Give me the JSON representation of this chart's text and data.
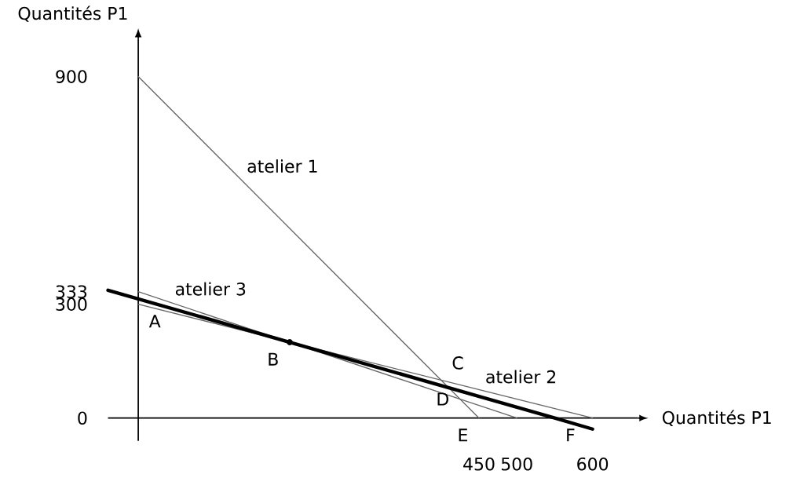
{
  "chart_data": {
    "type": "line",
    "xlabel": "Quantités P1",
    "ylabel": "Quantités P1",
    "xlim": [
      -40,
      660
    ],
    "ylim": [
      -60,
      1000
    ],
    "xticks": [
      450,
      500,
      600
    ],
    "yticks": [
      0,
      300,
      333,
      900
    ],
    "grid": false,
    "series": [
      {
        "name": "atelier 1",
        "color": "#666666",
        "x": [
          0,
          450
        ],
        "values": [
          900,
          0
        ]
      },
      {
        "name": "atelier 2",
        "color": "#666666",
        "x": [
          0,
          600
        ],
        "values": [
          300,
          0
        ]
      },
      {
        "name": "atelier 3",
        "color": "#666666",
        "x": [
          0,
          500
        ],
        "values": [
          333,
          0
        ]
      },
      {
        "color": "#000000",
        "x": [
          -40,
          200,
          550,
          600
        ],
        "values": [
          337,
          200,
          0,
          -29
        ]
      },
      {
        "type": "scatter",
        "color": "#000000",
        "x": [
          200
        ],
        "values": [
          200
        ]
      }
    ],
    "annotations": [
      {
        "text": "A",
        "x": 0,
        "y": 300
      },
      {
        "text": "B",
        "x": 200,
        "y": 200
      },
      {
        "text": "C",
        "x": 400,
        "y": 100
      },
      {
        "text": "D",
        "x": 425,
        "y": 50
      },
      {
        "text": "E",
        "x": 450,
        "y": 0
      },
      {
        "text": "F",
        "x": 550,
        "y": 0
      }
    ]
  }
}
